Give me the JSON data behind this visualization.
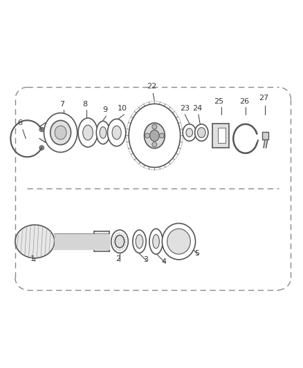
{
  "title": "",
  "background_color": "#ffffff",
  "line_color": "#555555",
  "text_color": "#333333",
  "dashed_line_color": "#888888",
  "fig_width": 4.38,
  "fig_height": 5.33,
  "dpi": 100
}
